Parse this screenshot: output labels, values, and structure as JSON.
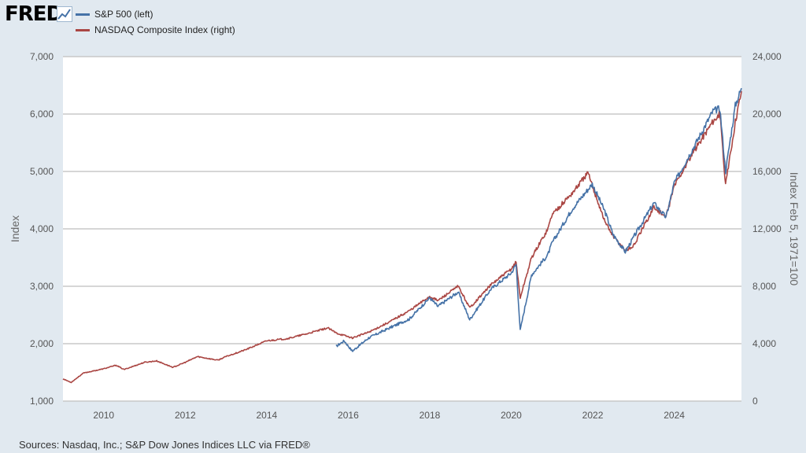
{
  "header": {
    "logo_text": "FRED",
    "logo_icon": "line-chart-icon"
  },
  "legend": [
    {
      "label": "S&P 500 (left)",
      "color": "#4572a7"
    },
    {
      "label": "NASDAQ Composite Index (right)",
      "color": "#aa4643"
    }
  ],
  "footer": {
    "source": "Sources: Nasdaq, Inc.; S&P Dow Jones Indices LLC via FRED®"
  },
  "chart_data": {
    "type": "line",
    "title": "",
    "xlabel": "",
    "ylabel": "Index",
    "y2label": "Index Feb 5, 1971=100",
    "xlim": [
      2009.0,
      2025.65
    ],
    "ylim": [
      1000,
      7000
    ],
    "y2lim": [
      0,
      24000
    ],
    "x_ticks": [
      "2010",
      "2012",
      "2014",
      "2016",
      "2018",
      "2020",
      "2022",
      "2024"
    ],
    "y_ticks": [
      "1,000",
      "2,000",
      "3,000",
      "4,000",
      "5,000",
      "6,000",
      "7,000"
    ],
    "y2_ticks": [
      "0",
      "4,000",
      "8,000",
      "12,000",
      "16,000",
      "20,000",
      "24,000"
    ],
    "grid": true,
    "legend_position": "top-left",
    "series": [
      {
        "name": "S&P 500 (left)",
        "axis": "left",
        "color": "#4572a7",
        "x": [
          2015.7,
          2015.9,
          2016.1,
          2016.5,
          2017.0,
          2017.5,
          2018.0,
          2018.2,
          2018.7,
          2018.98,
          2019.5,
          2020.0,
          2020.12,
          2020.22,
          2020.5,
          2020.9,
          2021.0,
          2021.5,
          2021.99,
          2022.3,
          2022.5,
          2022.8,
          2023.0,
          2023.5,
          2023.8,
          2024.0,
          2024.5,
          2024.95,
          2025.12,
          2025.26,
          2025.5,
          2025.65
        ],
        "y": [
          1950,
          2050,
          1870,
          2100,
          2270,
          2430,
          2800,
          2650,
          2900,
          2420,
          2950,
          3230,
          3380,
          2230,
          3200,
          3550,
          3750,
          4350,
          4780,
          4300,
          3900,
          3600,
          3850,
          4450,
          4200,
          4800,
          5450,
          6050,
          6100,
          5000,
          6150,
          6450
        ]
      },
      {
        "name": "NASDAQ Composite Index (right)",
        "axis": "right",
        "color": "#aa4643",
        "x": [
          2009.0,
          2009.2,
          2009.5,
          2010.0,
          2010.3,
          2010.5,
          2011.0,
          2011.3,
          2011.7,
          2012.0,
          2012.3,
          2012.8,
          2013.0,
          2013.5,
          2014.0,
          2014.5,
          2015.0,
          2015.5,
          2015.7,
          2016.1,
          2016.5,
          2017.0,
          2017.5,
          2018.0,
          2018.2,
          2018.7,
          2018.98,
          2019.5,
          2020.0,
          2020.12,
          2020.22,
          2020.5,
          2020.9,
          2021.0,
          2021.5,
          2021.88,
          2022.3,
          2022.5,
          2022.8,
          2023.0,
          2023.5,
          2023.8,
          2024.0,
          2024.5,
          2024.95,
          2025.12,
          2025.26,
          2025.5,
          2025.65
        ],
        "y": [
          1550,
          1300,
          1950,
          2250,
          2500,
          2200,
          2700,
          2800,
          2350,
          2700,
          3100,
          2850,
          3100,
          3600,
          4200,
          4350,
          4700,
          5100,
          4750,
          4400,
          4800,
          5500,
          6300,
          7300,
          7000,
          8000,
          6500,
          8100,
          9200,
          9700,
          7200,
          10000,
          12000,
          13000,
          14500,
          15900,
          12500,
          11500,
          10500,
          10800,
          13500,
          12800,
          15000,
          17500,
          19500,
          20000,
          15000,
          19500,
          21600
        ]
      }
    ]
  }
}
